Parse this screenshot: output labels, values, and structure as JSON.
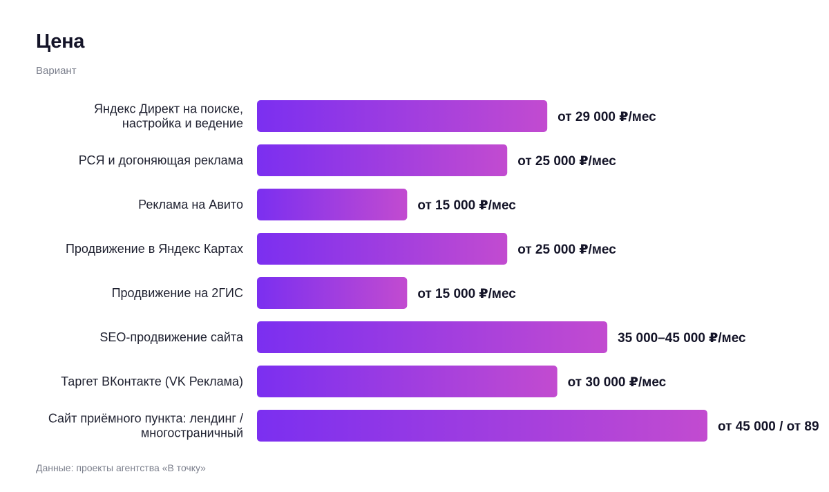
{
  "header": {
    "title": "Цена",
    "subtitle": "Вариант"
  },
  "footer": {
    "source": "Данные: проекты агентства «В точку»"
  },
  "colors": {
    "bar_start": "#7b2ff0",
    "bar_end": "#c24bd0",
    "label": "#1f2130",
    "value": "#141428"
  },
  "chart_data": {
    "type": "bar",
    "orientation": "horizontal",
    "title": "Цена",
    "subtitle": "Вариант",
    "categories": [
      [
        "Яндекс Директ на поиске,",
        "настройка и ведение"
      ],
      [
        "РСЯ и догоняющая реклама"
      ],
      [
        "Реклама на Авито"
      ],
      [
        "Продвижение в Яндекс Картах"
      ],
      [
        "Продвижение на 2ГИС"
      ],
      [
        "SEO-продвижение сайта"
      ],
      [
        "Таргет ВКонтакте (VK Реклама)"
      ],
      [
        "Сайт приёмного пункта: лендинг /",
        "многостраничный"
      ]
    ],
    "values": [
      29000,
      25000,
      15000,
      25000,
      15000,
      35000,
      30000,
      45000
    ],
    "value_labels": [
      "от 29 000 ₽/мес",
      "от 25 000 ₽/мес",
      "от 15 000 ₽/мес",
      "от 25 000 ₽/мес",
      "от 15 000 ₽/мес",
      "35 000–45 000 ₽/мес",
      "от 30 000 ₽/мес",
      "от 45 000 / от 89"
    ],
    "xlim": [
      0,
      45000
    ],
    "grid": false,
    "legend": "none"
  }
}
